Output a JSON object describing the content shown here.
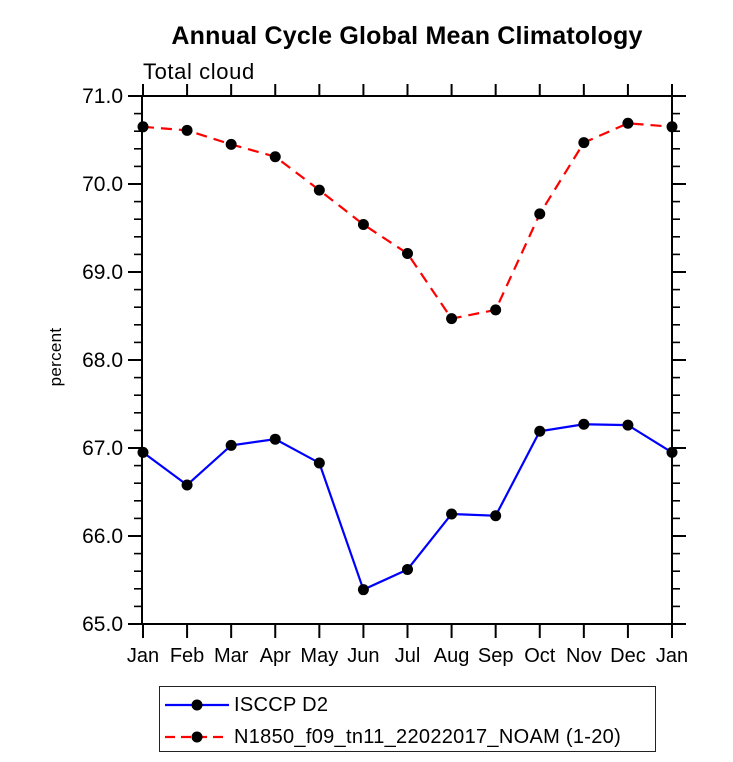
{
  "header": {
    "title": "Annual Cycle Global Mean Climatology",
    "subtitle": "Total cloud"
  },
  "chart_data": {
    "type": "line",
    "title": "Annual Cycle Global Mean Climatology",
    "subtitle": "Total cloud",
    "xlabel": "",
    "ylabel": "percent",
    "categories": [
      "Jan",
      "Feb",
      "Mar",
      "Apr",
      "May",
      "Jun",
      "Jul",
      "Aug",
      "Sep",
      "Oct",
      "Nov",
      "Dec",
      "Jan"
    ],
    "ylim": [
      65.0,
      71.0
    ],
    "yticks": [
      65.0,
      66.0,
      67.0,
      68.0,
      69.0,
      70.0,
      71.0
    ],
    "ytick_labels": [
      "65.0",
      "66.0",
      "67.0",
      "68.0",
      "69.0",
      "70.0",
      "71.0"
    ],
    "y_minor_step": 0.2,
    "grid": false,
    "legend_position": "bottom-left",
    "axis_color": "#000000",
    "marker_color": "#000000",
    "series": [
      {
        "name": "ISCCP D2",
        "color": "#0000ff",
        "line_style": "solid",
        "marker": "circle",
        "values": [
          66.95,
          66.58,
          67.03,
          67.1,
          66.83,
          65.39,
          65.62,
          66.25,
          66.23,
          67.19,
          67.27,
          67.26,
          66.95
        ]
      },
      {
        "name": "N1850_f09_tn11_22022017_NOAM (1-20)",
        "color": "#ff0000",
        "line_style": "dashed",
        "marker": "circle",
        "values": [
          70.65,
          70.61,
          70.45,
          70.31,
          69.93,
          69.54,
          69.21,
          68.47,
          68.57,
          69.66,
          70.47,
          70.69,
          70.65
        ]
      }
    ]
  }
}
